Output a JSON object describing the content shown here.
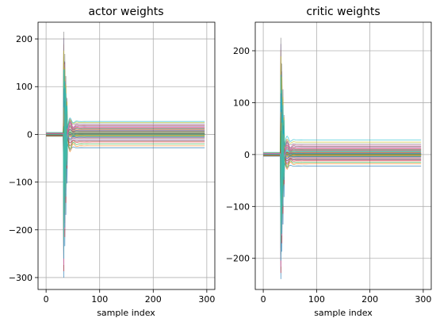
{
  "chart_data": [
    {
      "type": "line",
      "title": "actor weights",
      "xlabel": "sample index",
      "ylabel": "",
      "xlim": [
        -15,
        315
      ],
      "ylim": [
        -325,
        235
      ],
      "xticks": [
        0,
        100,
        200,
        300
      ],
      "yticks": [
        -300,
        -200,
        -100,
        0,
        100,
        200
      ],
      "xtick_labels": [
        "0",
        "100",
        "200",
        "300"
      ],
      "ytick_labels": [
        "−300",
        "−200",
        "−100",
        "0",
        "100",
        "200"
      ],
      "grid": true,
      "series_count": 40,
      "spike_x": 35,
      "spike_peak_range": [
        -300,
        215
      ],
      "settled_values": [
        -28,
        -24,
        -20,
        -16,
        -12,
        -9,
        -7,
        -5,
        -4,
        -3,
        -2,
        -1,
        0,
        0,
        1,
        2,
        3,
        4,
        5,
        6,
        8,
        10,
        12,
        14,
        16,
        18,
        20,
        22,
        25,
        27,
        -6,
        -2,
        2,
        7,
        11,
        -14,
        15,
        1,
        -1,
        0
      ],
      "series_colors": [
        "#1f77b4",
        "#ff7f0e",
        "#2ca02c",
        "#d62728",
        "#9467bd",
        "#8c564b",
        "#e377c2",
        "#7f7f7f",
        "#bcbd22",
        "#17becf"
      ]
    },
    {
      "type": "line",
      "title": "critic weights",
      "xlabel": "sample index",
      "ylabel": "",
      "xlim": [
        -15,
        315
      ],
      "ylim": [
        -260,
        255
      ],
      "xticks": [
        0,
        100,
        200,
        300
      ],
      "yticks": [
        -200,
        -100,
        0,
        100,
        200
      ],
      "xtick_labels": [
        "0",
        "100",
        "200",
        "300"
      ],
      "ytick_labels": [
        "−200",
        "−100",
        "0",
        "100",
        "200"
      ],
      "grid": true,
      "series_count": 40,
      "spike_x": 35,
      "spike_peak_range": [
        -240,
        225
      ],
      "settled_values": [
        -22,
        -18,
        -15,
        -12,
        -10,
        -8,
        -6,
        -5,
        -4,
        -3,
        -2,
        -1,
        0,
        0,
        1,
        2,
        3,
        4,
        5,
        6,
        7,
        8,
        10,
        12,
        14,
        16,
        18,
        20,
        24,
        28,
        -4,
        -2,
        1,
        3,
        9,
        -9,
        11,
        0,
        -1,
        2
      ],
      "series_colors": [
        "#1f77b4",
        "#ff7f0e",
        "#2ca02c",
        "#d62728",
        "#9467bd",
        "#8c564b",
        "#e377c2",
        "#7f7f7f",
        "#bcbd22",
        "#17becf"
      ]
    }
  ]
}
